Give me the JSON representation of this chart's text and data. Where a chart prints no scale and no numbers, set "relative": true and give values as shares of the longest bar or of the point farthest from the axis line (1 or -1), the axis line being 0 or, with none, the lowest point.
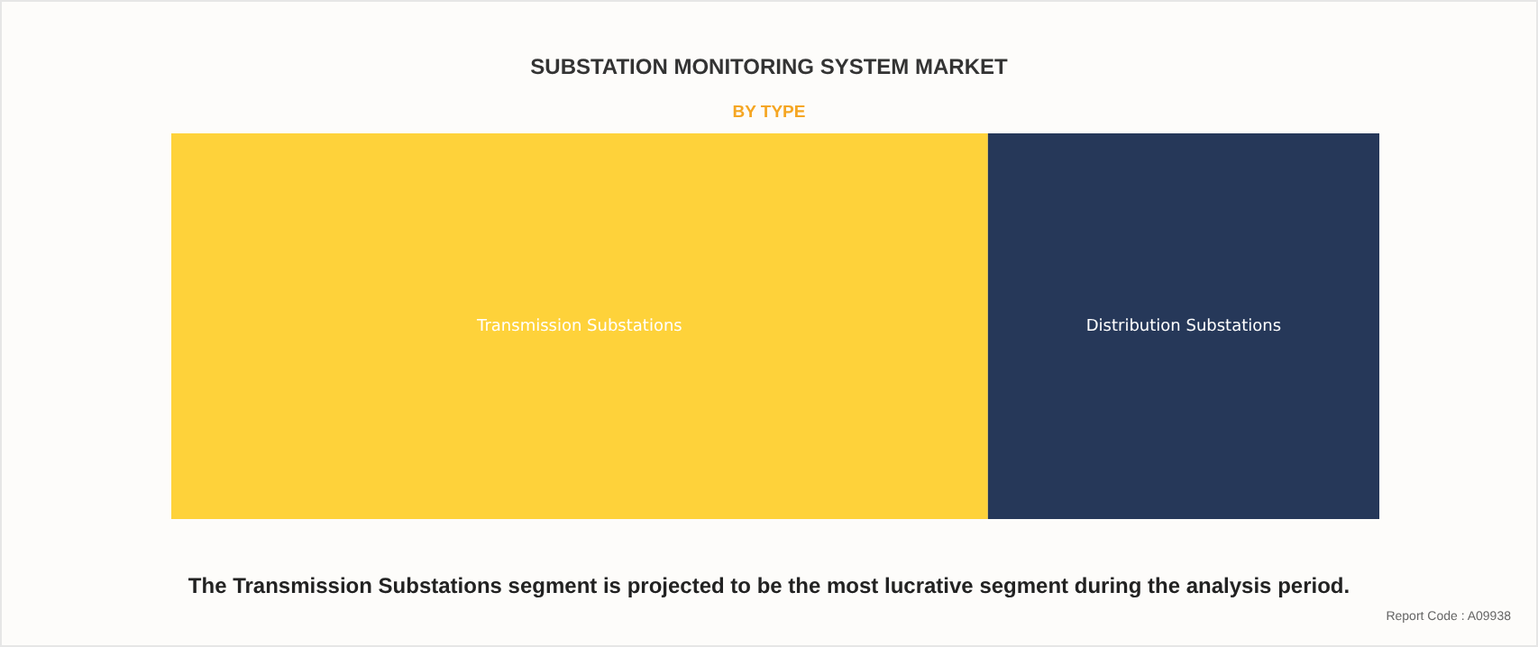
{
  "chart_data": {
    "type": "bar",
    "title": "SUBSTATION MONITORING SYSTEM MARKET",
    "subtitle": "BY TYPE",
    "orientation": "horizontal",
    "stacked": true,
    "relative": true,
    "categories": [
      null
    ],
    "series": [
      {
        "name": "Transmission Substations",
        "color": "#fed23a",
        "values": [
          0.676
        ]
      },
      {
        "name": "Distribution Substations",
        "color": "#263859",
        "values": [
          0.324
        ]
      }
    ],
    "annotations": [
      "The Transmission Substations segment is projected to be the most lucrative segment during the analysis period.",
      "Report Code : A09938"
    ]
  }
}
